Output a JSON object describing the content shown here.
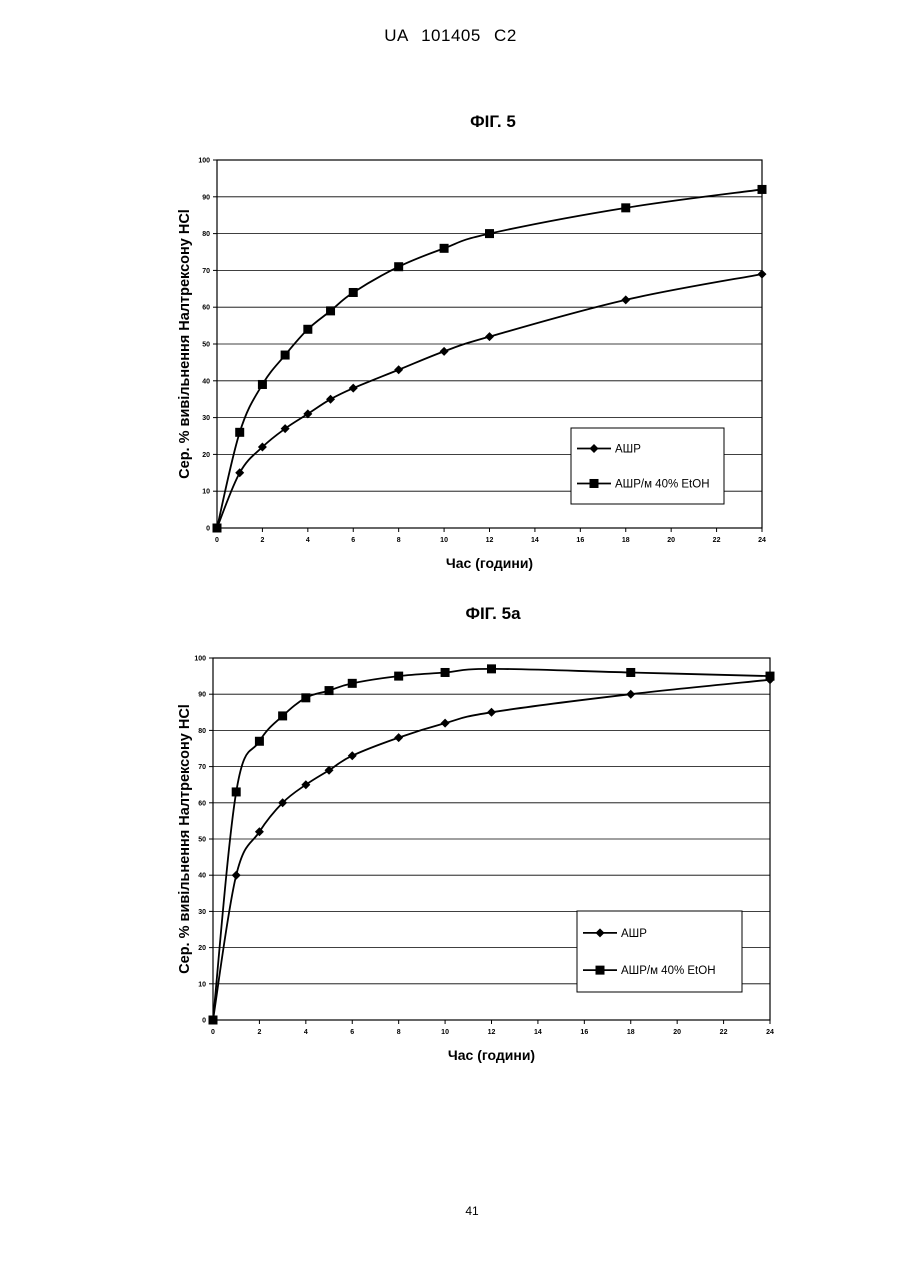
{
  "header": "UA   101405   C2",
  "page_number": "41",
  "chart_data": [
    {
      "type": "line",
      "title": "ФІГ. 5",
      "xlabel": "Час (години)",
      "ylabel": "Сер. % вивільнення Налтрексону HCl",
      "xlim": [
        0,
        24
      ],
      "ylim": [
        0,
        100
      ],
      "xticks": [
        0,
        2,
        4,
        6,
        8,
        10,
        12,
        14,
        16,
        18,
        20,
        22,
        24
      ],
      "yticks": [
        0,
        10,
        20,
        30,
        40,
        50,
        60,
        70,
        80,
        90,
        100
      ],
      "grid": "horizontal",
      "legend_position": "bottom-right",
      "series": [
        {
          "name": "АШР",
          "marker": "diamond",
          "x": [
            0,
            1,
            2,
            3,
            4,
            5,
            6,
            8,
            10,
            12,
            18,
            24
          ],
          "y": [
            0,
            15,
            22,
            27,
            31,
            35,
            38,
            43,
            48,
            52,
            62,
            69
          ]
        },
        {
          "name": "АШР/м 40% EtOH",
          "marker": "square",
          "x": [
            0,
            1,
            2,
            3,
            4,
            5,
            6,
            8,
            10,
            12,
            18,
            24
          ],
          "y": [
            0,
            26,
            39,
            47,
            54,
            59,
            64,
            71,
            76,
            80,
            87,
            92
          ]
        }
      ]
    },
    {
      "type": "line",
      "title": "ФІГ. 5а",
      "xlabel": "Час (години)",
      "ylabel": "Сер. % вивільнення Налтрексону HCl",
      "xlim": [
        0,
        24
      ],
      "ylim": [
        0,
        100
      ],
      "xticks": [
        0,
        2,
        4,
        6,
        8,
        10,
        12,
        14,
        16,
        18,
        20,
        22,
        24
      ],
      "yticks": [
        0,
        10,
        20,
        30,
        40,
        50,
        60,
        70,
        80,
        90,
        100
      ],
      "grid": "horizontal",
      "legend_position": "bottom-right",
      "series": [
        {
          "name": "АШР",
          "marker": "diamond",
          "x": [
            0,
            1,
            2,
            3,
            4,
            5,
            6,
            8,
            10,
            12,
            18,
            24
          ],
          "y": [
            0,
            40,
            52,
            60,
            65,
            69,
            73,
            78,
            82,
            85,
            90,
            94
          ]
        },
        {
          "name": "АШР/м 40% EtOH",
          "marker": "square",
          "x": [
            0,
            1,
            2,
            3,
            4,
            5,
            6,
            8,
            10,
            12,
            18,
            24
          ],
          "y": [
            0,
            63,
            77,
            84,
            89,
            91,
            93,
            95,
            96,
            97,
            96,
            95
          ]
        }
      ]
    }
  ]
}
